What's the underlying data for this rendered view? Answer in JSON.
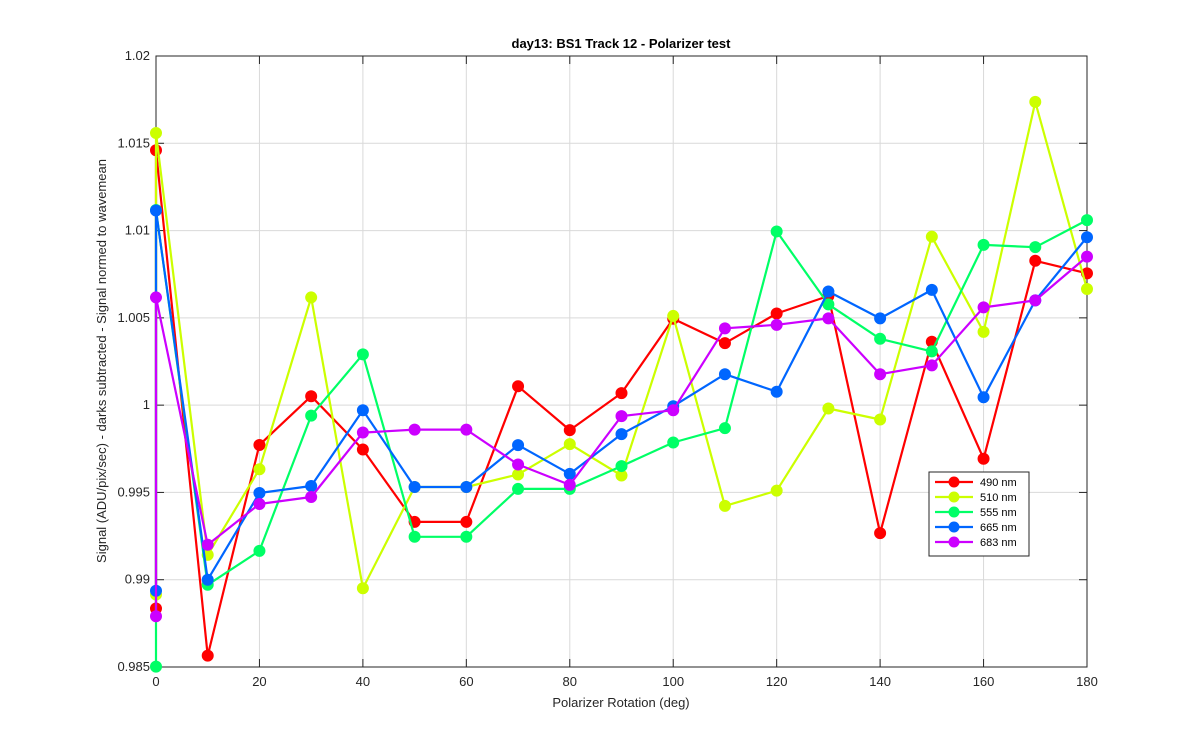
{
  "chart_data": {
    "type": "line",
    "title": "day13: BS1  Track 12 - Polarizer test",
    "xlabel": "Polarizer Rotation (deg)",
    "ylabel": "Signal (ADU/pix/sec) - darks subtracted - Signal normed to wavemean",
    "xlim": [
      0,
      180
    ],
    "ylim": [
      0.985,
      1.02
    ],
    "xticks": [
      0,
      20,
      40,
      60,
      80,
      100,
      120,
      140,
      160,
      180
    ],
    "xtick_labels": [
      "0",
      "20",
      "40",
      "60",
      "80",
      "100",
      "120",
      "140",
      "160",
      "180"
    ],
    "yticks": [
      0.985,
      0.99,
      0.995,
      1.0,
      1.005,
      1.01,
      1.015,
      1.02
    ],
    "ytick_labels": [
      "0.985",
      "0.99",
      "0.995",
      "1",
      "1.005",
      "1.01",
      "1.015",
      "1.02"
    ],
    "grid": true,
    "legend_location": "lower-right",
    "series": [
      {
        "name": "490 nm",
        "color": "#ff0000",
        "x": [
          0,
          0,
          10,
          20,
          30,
          40,
          50,
          60,
          70,
          80,
          90,
          100,
          110,
          120,
          130,
          140,
          150,
          160,
          170,
          180
        ],
        "y": [
          0.98835,
          1.0146,
          0.98565,
          0.99772,
          1.00051,
          0.99746,
          0.99331,
          0.99331,
          1.00108,
          0.99857,
          1.00069,
          1.00495,
          1.00355,
          1.00525,
          1.00625,
          0.99267,
          1.00363,
          0.99693,
          1.00827,
          1.00755
        ]
      },
      {
        "name": "510 nm",
        "color": "#ccff00",
        "x": [
          0,
          0,
          10,
          20,
          30,
          40,
          50,
          60,
          70,
          80,
          90,
          100,
          110,
          120,
          130,
          140,
          150,
          160,
          170,
          180
        ],
        "y": [
          0.98915,
          1.01559,
          0.99142,
          0.99633,
          1.00617,
          0.98951,
          0.99531,
          0.99531,
          0.99603,
          0.99777,
          0.99597,
          1.00511,
          0.99423,
          0.9951,
          0.99981,
          0.99918,
          1.00965,
          1.0042,
          1.01737,
          1.00665
        ]
      },
      {
        "name": "555 nm",
        "color": "#00ff66",
        "x": [
          0,
          0,
          10,
          20,
          30,
          40,
          50,
          60,
          70,
          80,
          90,
          100,
          110,
          120,
          130,
          140,
          150,
          160,
          170,
          180
        ],
        "y": [
          0.98502,
          1.01118,
          0.98971,
          0.99165,
          0.9994,
          1.00291,
          0.99246,
          0.99246,
          0.9952,
          0.9952,
          0.99651,
          0.99786,
          0.99868,
          1.00995,
          1.00577,
          1.0038,
          1.00308,
          1.00918,
          1.00905,
          1.0106
        ]
      },
      {
        "name": "665 nm",
        "color": "#0066ff",
        "x": [
          0,
          0,
          10,
          20,
          30,
          40,
          50,
          60,
          70,
          80,
          90,
          100,
          110,
          120,
          130,
          140,
          150,
          160,
          170,
          180
        ],
        "y": [
          0.98937,
          1.01115,
          0.99,
          0.99497,
          0.99537,
          0.99971,
          0.99531,
          0.99531,
          0.99771,
          0.99606,
          0.99834,
          0.99994,
          1.00177,
          1.00077,
          1.00651,
          1.00497,
          1.0066,
          1.00045,
          1.006,
          1.00962
        ]
      },
      {
        "name": "683 nm",
        "color": "#cc00ff",
        "x": [
          0,
          0,
          10,
          20,
          30,
          40,
          50,
          60,
          70,
          80,
          90,
          100,
          110,
          120,
          130,
          140,
          150,
          160,
          170,
          180
        ],
        "y": [
          0.98791,
          1.00617,
          0.992,
          0.99434,
          0.99474,
          0.99843,
          0.9986,
          0.9986,
          0.9966,
          0.99543,
          0.99937,
          0.99971,
          1.0044,
          1.0046,
          1.00497,
          1.00177,
          1.00228,
          1.0056,
          1.006,
          1.00851
        ]
      }
    ]
  }
}
